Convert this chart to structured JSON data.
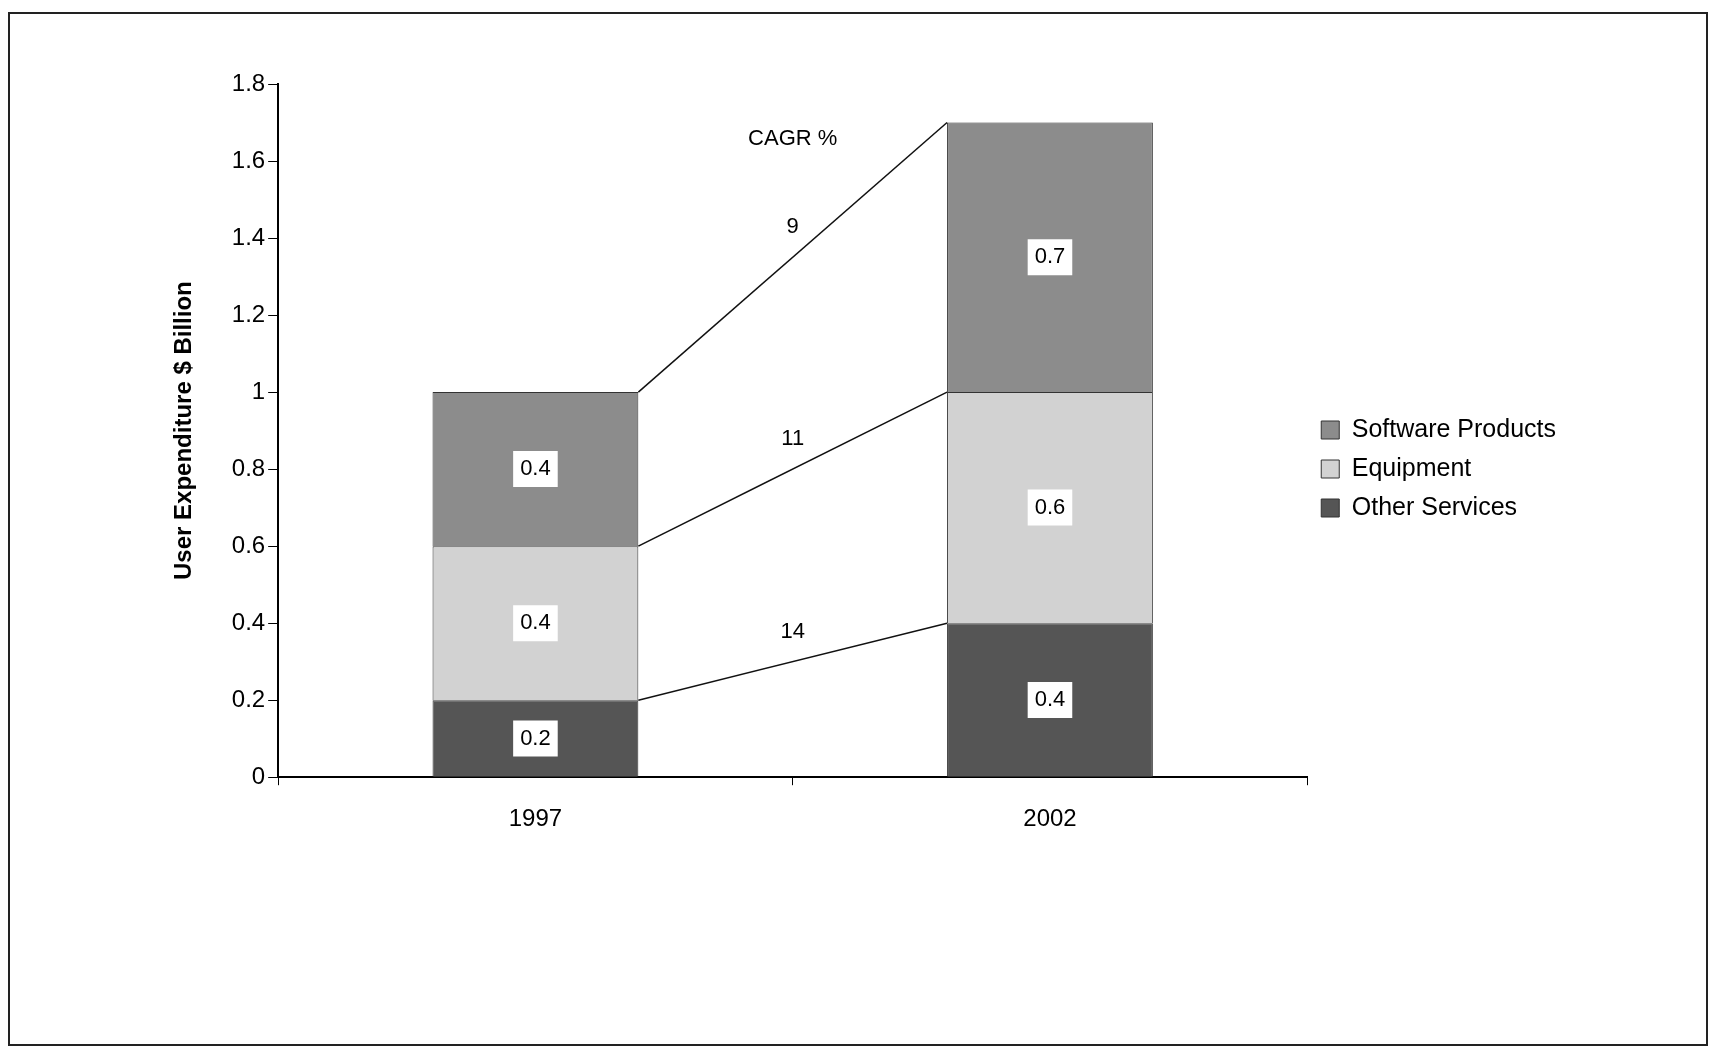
{
  "chart_data": {
    "type": "bar",
    "stacked": true,
    "ylabel": "User Expenditure $ Billion",
    "categories": [
      "1997",
      "2002"
    ],
    "series": [
      {
        "name": "Other Services",
        "color": "#555555",
        "values": [
          0.2,
          0.4
        ]
      },
      {
        "name": "Equipment",
        "color": "#d2d2d2",
        "values": [
          0.4,
          0.6
        ]
      },
      {
        "name": "Software Products",
        "color": "#8c8c8c",
        "values": [
          0.4,
          0.7
        ]
      }
    ],
    "ylim": [
      0,
      1.8
    ],
    "yticks": [
      0,
      0.2,
      0.4,
      0.6,
      0.8,
      1,
      1.2,
      1.4,
      1.6,
      1.8
    ],
    "grid": false,
    "legend": "right",
    "data_labels": true,
    "annotations": [
      "CAGR %",
      "9",
      "11",
      "14"
    ]
  }
}
